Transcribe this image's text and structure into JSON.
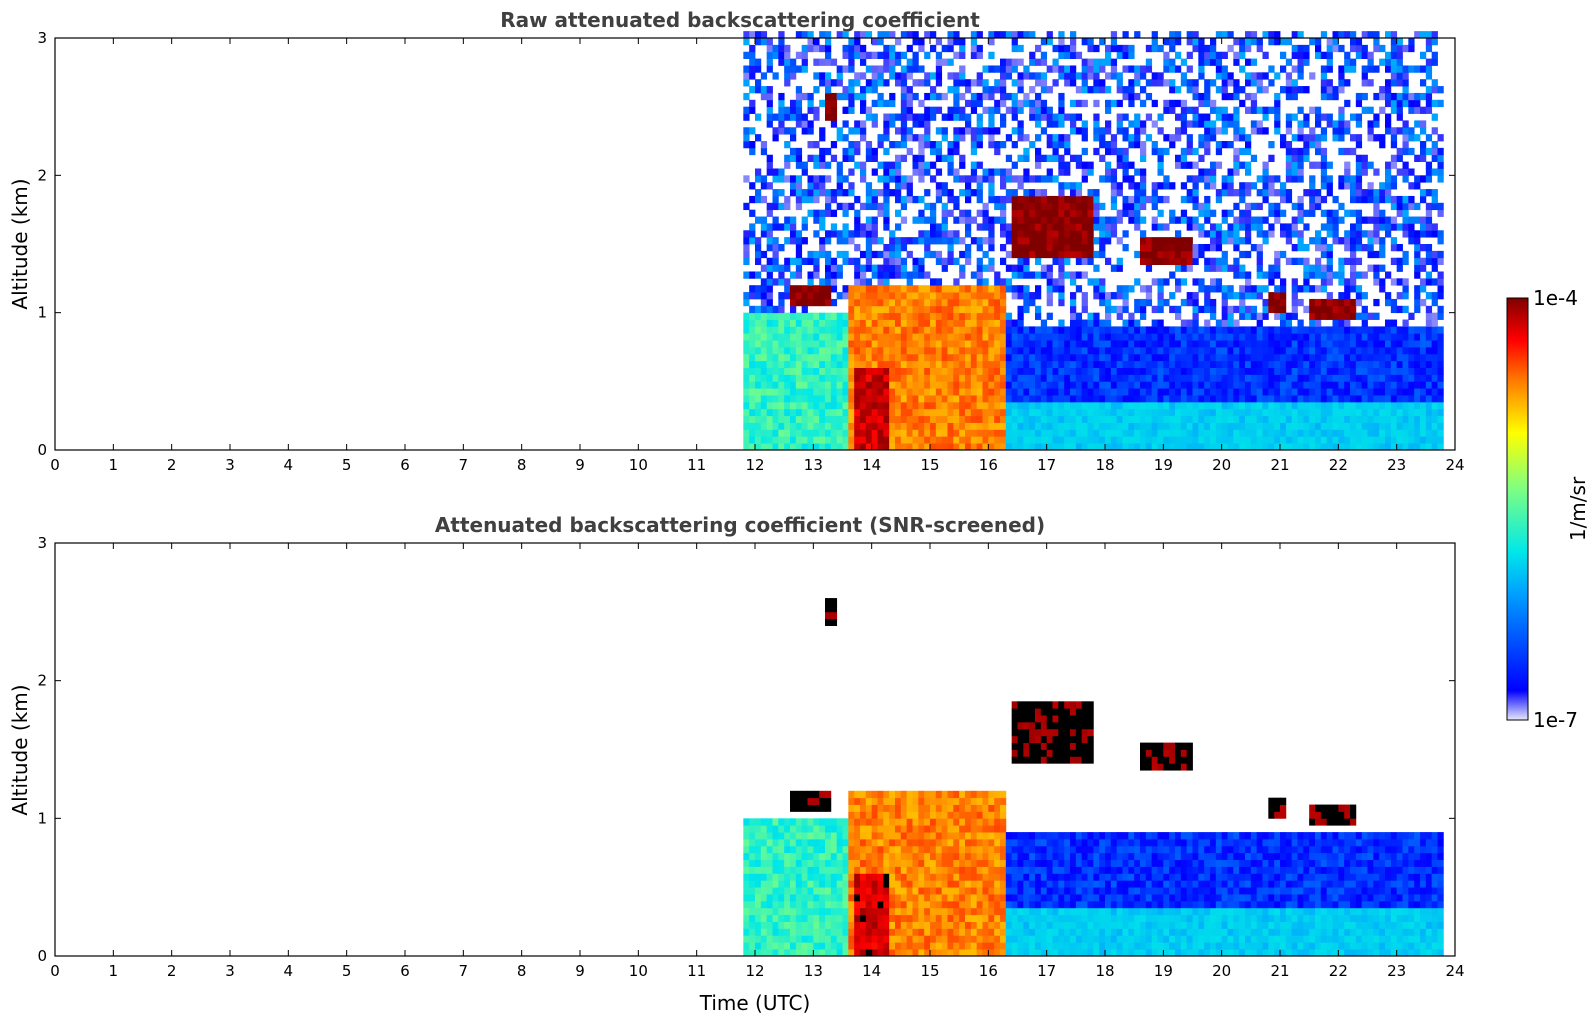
{
  "chart_data": [
    {
      "type": "heatmap",
      "title": "Raw attenuated backscattering coefficient",
      "xlabel": "",
      "ylabel": "Altitude (km)",
      "xlim": [
        0,
        24
      ],
      "ylim": [
        0,
        3
      ],
      "xticks": [
        "0",
        "1",
        "2",
        "3",
        "4",
        "5",
        "6",
        "7",
        "8",
        "9",
        "10",
        "11",
        "12",
        "13",
        "14",
        "15",
        "16",
        "17",
        "18",
        "19",
        "20",
        "21",
        "22",
        "23",
        "24"
      ],
      "yticks": [
        "0",
        "1",
        "2",
        "3"
      ],
      "screened": false,
      "features": [
        {
          "name": "near-surface aerosol",
          "t_start": 11.85,
          "t_end": 23.8,
          "alt_low": 0.0,
          "alt_high": 0.35,
          "level": 0.3
        },
        {
          "name": "convective layer",
          "t_start": 13.6,
          "t_end": 16.3,
          "alt_low": 0.0,
          "alt_high": 1.2,
          "level": 0.75
        },
        {
          "name": "convective layer core",
          "t_start": 13.7,
          "t_end": 14.3,
          "alt_low": 0.0,
          "alt_high": 0.6,
          "level": 0.92
        },
        {
          "name": "early mixed layer",
          "t_start": 11.85,
          "t_end": 13.6,
          "alt_low": 0.0,
          "alt_high": 1.0,
          "level": 0.42
        },
        {
          "name": "cloud layer",
          "t_start": 12.6,
          "t_end": 13.3,
          "alt_low": 1.05,
          "alt_high": 1.2,
          "level": 1.0
        },
        {
          "name": "cloud layer",
          "t_start": 16.4,
          "t_end": 17.8,
          "alt_low": 1.4,
          "alt_high": 1.85,
          "level": 1.0
        },
        {
          "name": "cloud layer",
          "t_start": 18.6,
          "t_end": 19.55,
          "alt_low": 1.35,
          "alt_high": 1.55,
          "level": 1.0
        },
        {
          "name": "cloud layer",
          "t_start": 21.5,
          "t_end": 22.3,
          "alt_low": 0.95,
          "alt_high": 1.1,
          "level": 1.0
        },
        {
          "name": "cloud layer",
          "t_start": 20.8,
          "t_end": 21.1,
          "alt_low": 1.0,
          "alt_high": 1.15,
          "level": 1.0
        },
        {
          "name": "cloud layer",
          "t_start": 13.2,
          "t_end": 13.35,
          "alt_low": 2.4,
          "alt_high": 2.6,
          "level": 1.0
        }
      ]
    },
    {
      "type": "heatmap",
      "title": "Attenuated backscattering coefficient (SNR-screened)",
      "xlabel": "Time (UTC)",
      "ylabel": "Altitude (km)",
      "xlim": [
        0,
        24
      ],
      "ylim": [
        0,
        3
      ],
      "xticks": [
        "0",
        "1",
        "2",
        "3",
        "4",
        "5",
        "6",
        "7",
        "8",
        "9",
        "10",
        "11",
        "12",
        "13",
        "14",
        "15",
        "16",
        "17",
        "18",
        "19",
        "20",
        "21",
        "22",
        "23",
        "24"
      ],
      "yticks": [
        "0",
        "1",
        "2",
        "3"
      ],
      "screened": true,
      "features": [
        {
          "name": "near-surface aerosol",
          "t_start": 11.85,
          "t_end": 23.8,
          "alt_low": 0.0,
          "alt_high": 0.35,
          "level": 0.3
        },
        {
          "name": "convective layer",
          "t_start": 13.6,
          "t_end": 16.3,
          "alt_low": 0.0,
          "alt_high": 1.2,
          "level": 0.75
        },
        {
          "name": "convective layer core",
          "t_start": 13.7,
          "t_end": 14.3,
          "alt_low": 0.0,
          "alt_high": 0.6,
          "level": 0.92
        },
        {
          "name": "early mixed layer",
          "t_start": 11.85,
          "t_end": 13.6,
          "alt_low": 0.0,
          "alt_high": 1.0,
          "level": 0.42
        },
        {
          "name": "cloud layer",
          "t_start": 12.6,
          "t_end": 13.3,
          "alt_low": 1.05,
          "alt_high": 1.2,
          "level": 1.0
        },
        {
          "name": "cloud layer",
          "t_start": 16.4,
          "t_end": 17.8,
          "alt_low": 1.4,
          "alt_high": 1.85,
          "level": 1.0
        },
        {
          "name": "cloud layer",
          "t_start": 18.6,
          "t_end": 19.55,
          "alt_low": 1.35,
          "alt_high": 1.55,
          "level": 1.0
        },
        {
          "name": "cloud layer",
          "t_start": 21.5,
          "t_end": 22.3,
          "alt_low": 0.95,
          "alt_high": 1.1,
          "level": 1.0
        },
        {
          "name": "cloud layer",
          "t_start": 20.8,
          "t_end": 21.1,
          "alt_low": 1.0,
          "alt_high": 1.15,
          "level": 1.0
        },
        {
          "name": "cloud layer",
          "t_start": 13.2,
          "t_end": 13.35,
          "alt_low": 2.4,
          "alt_high": 2.6,
          "level": 1.0
        }
      ]
    }
  ],
  "colorbar": {
    "label": "1/m/sr",
    "max_label": "1e-4",
    "min_label": "1e-7",
    "colormap": "jet",
    "colors": [
      "#e8e8f8",
      "#0000ff",
      "#00a0ff",
      "#00e8e8",
      "#80ff80",
      "#ffff00",
      "#ff8000",
      "#ff0000",
      "#800000"
    ]
  }
}
